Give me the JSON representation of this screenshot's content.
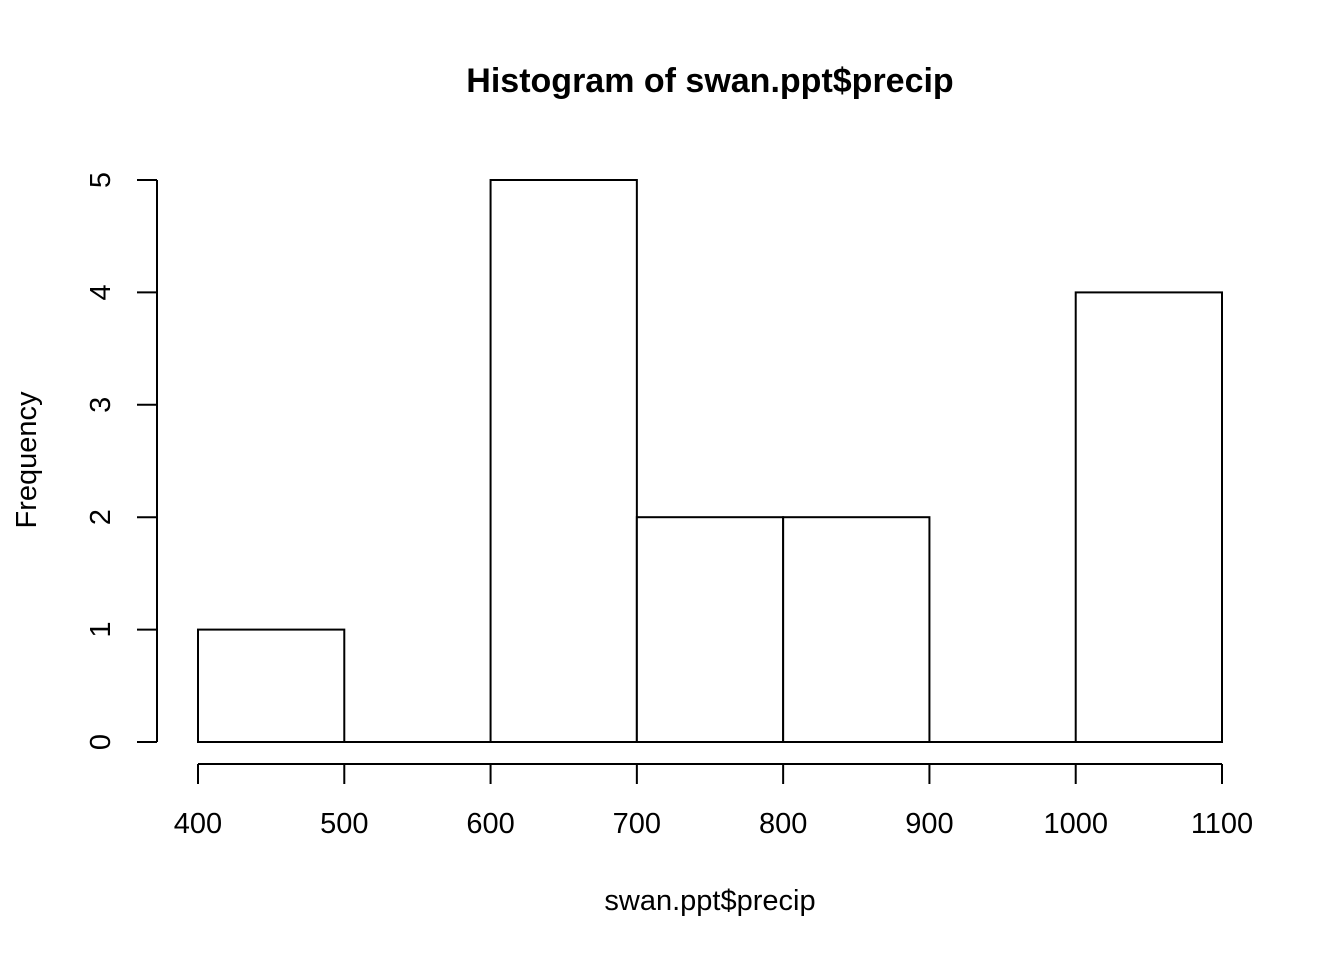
{
  "chart_data": {
    "type": "bar",
    "title": "Histogram of swan.ppt$precip",
    "xlabel": "swan.ppt$precip",
    "ylabel": "Frequency",
    "bins": [
      {
        "from": 400,
        "to": 500,
        "count": 1
      },
      {
        "from": 500,
        "to": 600,
        "count": 0
      },
      {
        "from": 600,
        "to": 700,
        "count": 5
      },
      {
        "from": 700,
        "to": 800,
        "count": 2
      },
      {
        "from": 800,
        "to": 900,
        "count": 2
      },
      {
        "from": 900,
        "to": 1000,
        "count": 0
      },
      {
        "from": 1000,
        "to": 1100,
        "count": 4
      }
    ],
    "xlim": [
      400,
      1100
    ],
    "ylim": [
      0,
      5
    ],
    "x_ticks": [
      400,
      500,
      600,
      700,
      800,
      900,
      1000,
      1100
    ],
    "y_ticks": [
      0,
      1,
      2,
      3,
      4,
      5
    ],
    "grid": false,
    "legend": "none",
    "colors": {
      "bar_fill": "#ffffff",
      "bar_stroke": "#000000"
    }
  }
}
